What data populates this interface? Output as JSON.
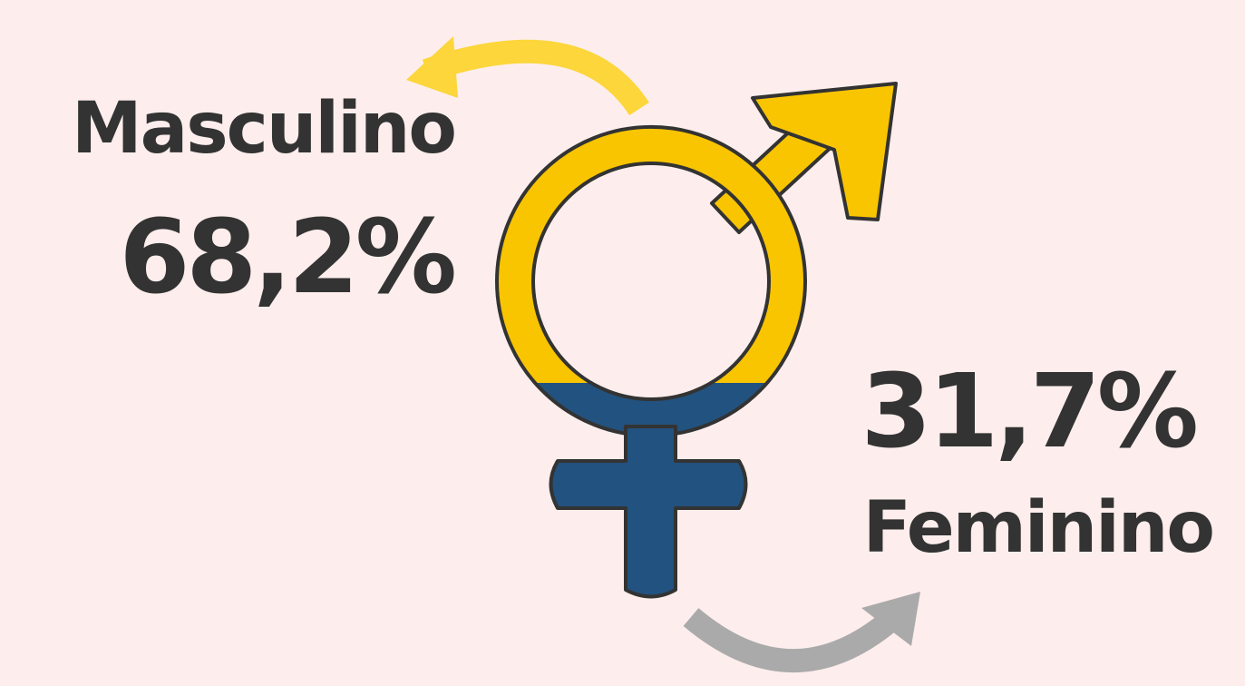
{
  "chart_data": {
    "type": "pictogram",
    "categories": [
      "Masculino",
      "Feminino"
    ],
    "values": [
      68.2,
      31.7
    ],
    "value_labels": [
      "68,2%",
      "31,7%"
    ],
    "colors": [
      "#f9c500",
      "#22527f"
    ]
  }
}
